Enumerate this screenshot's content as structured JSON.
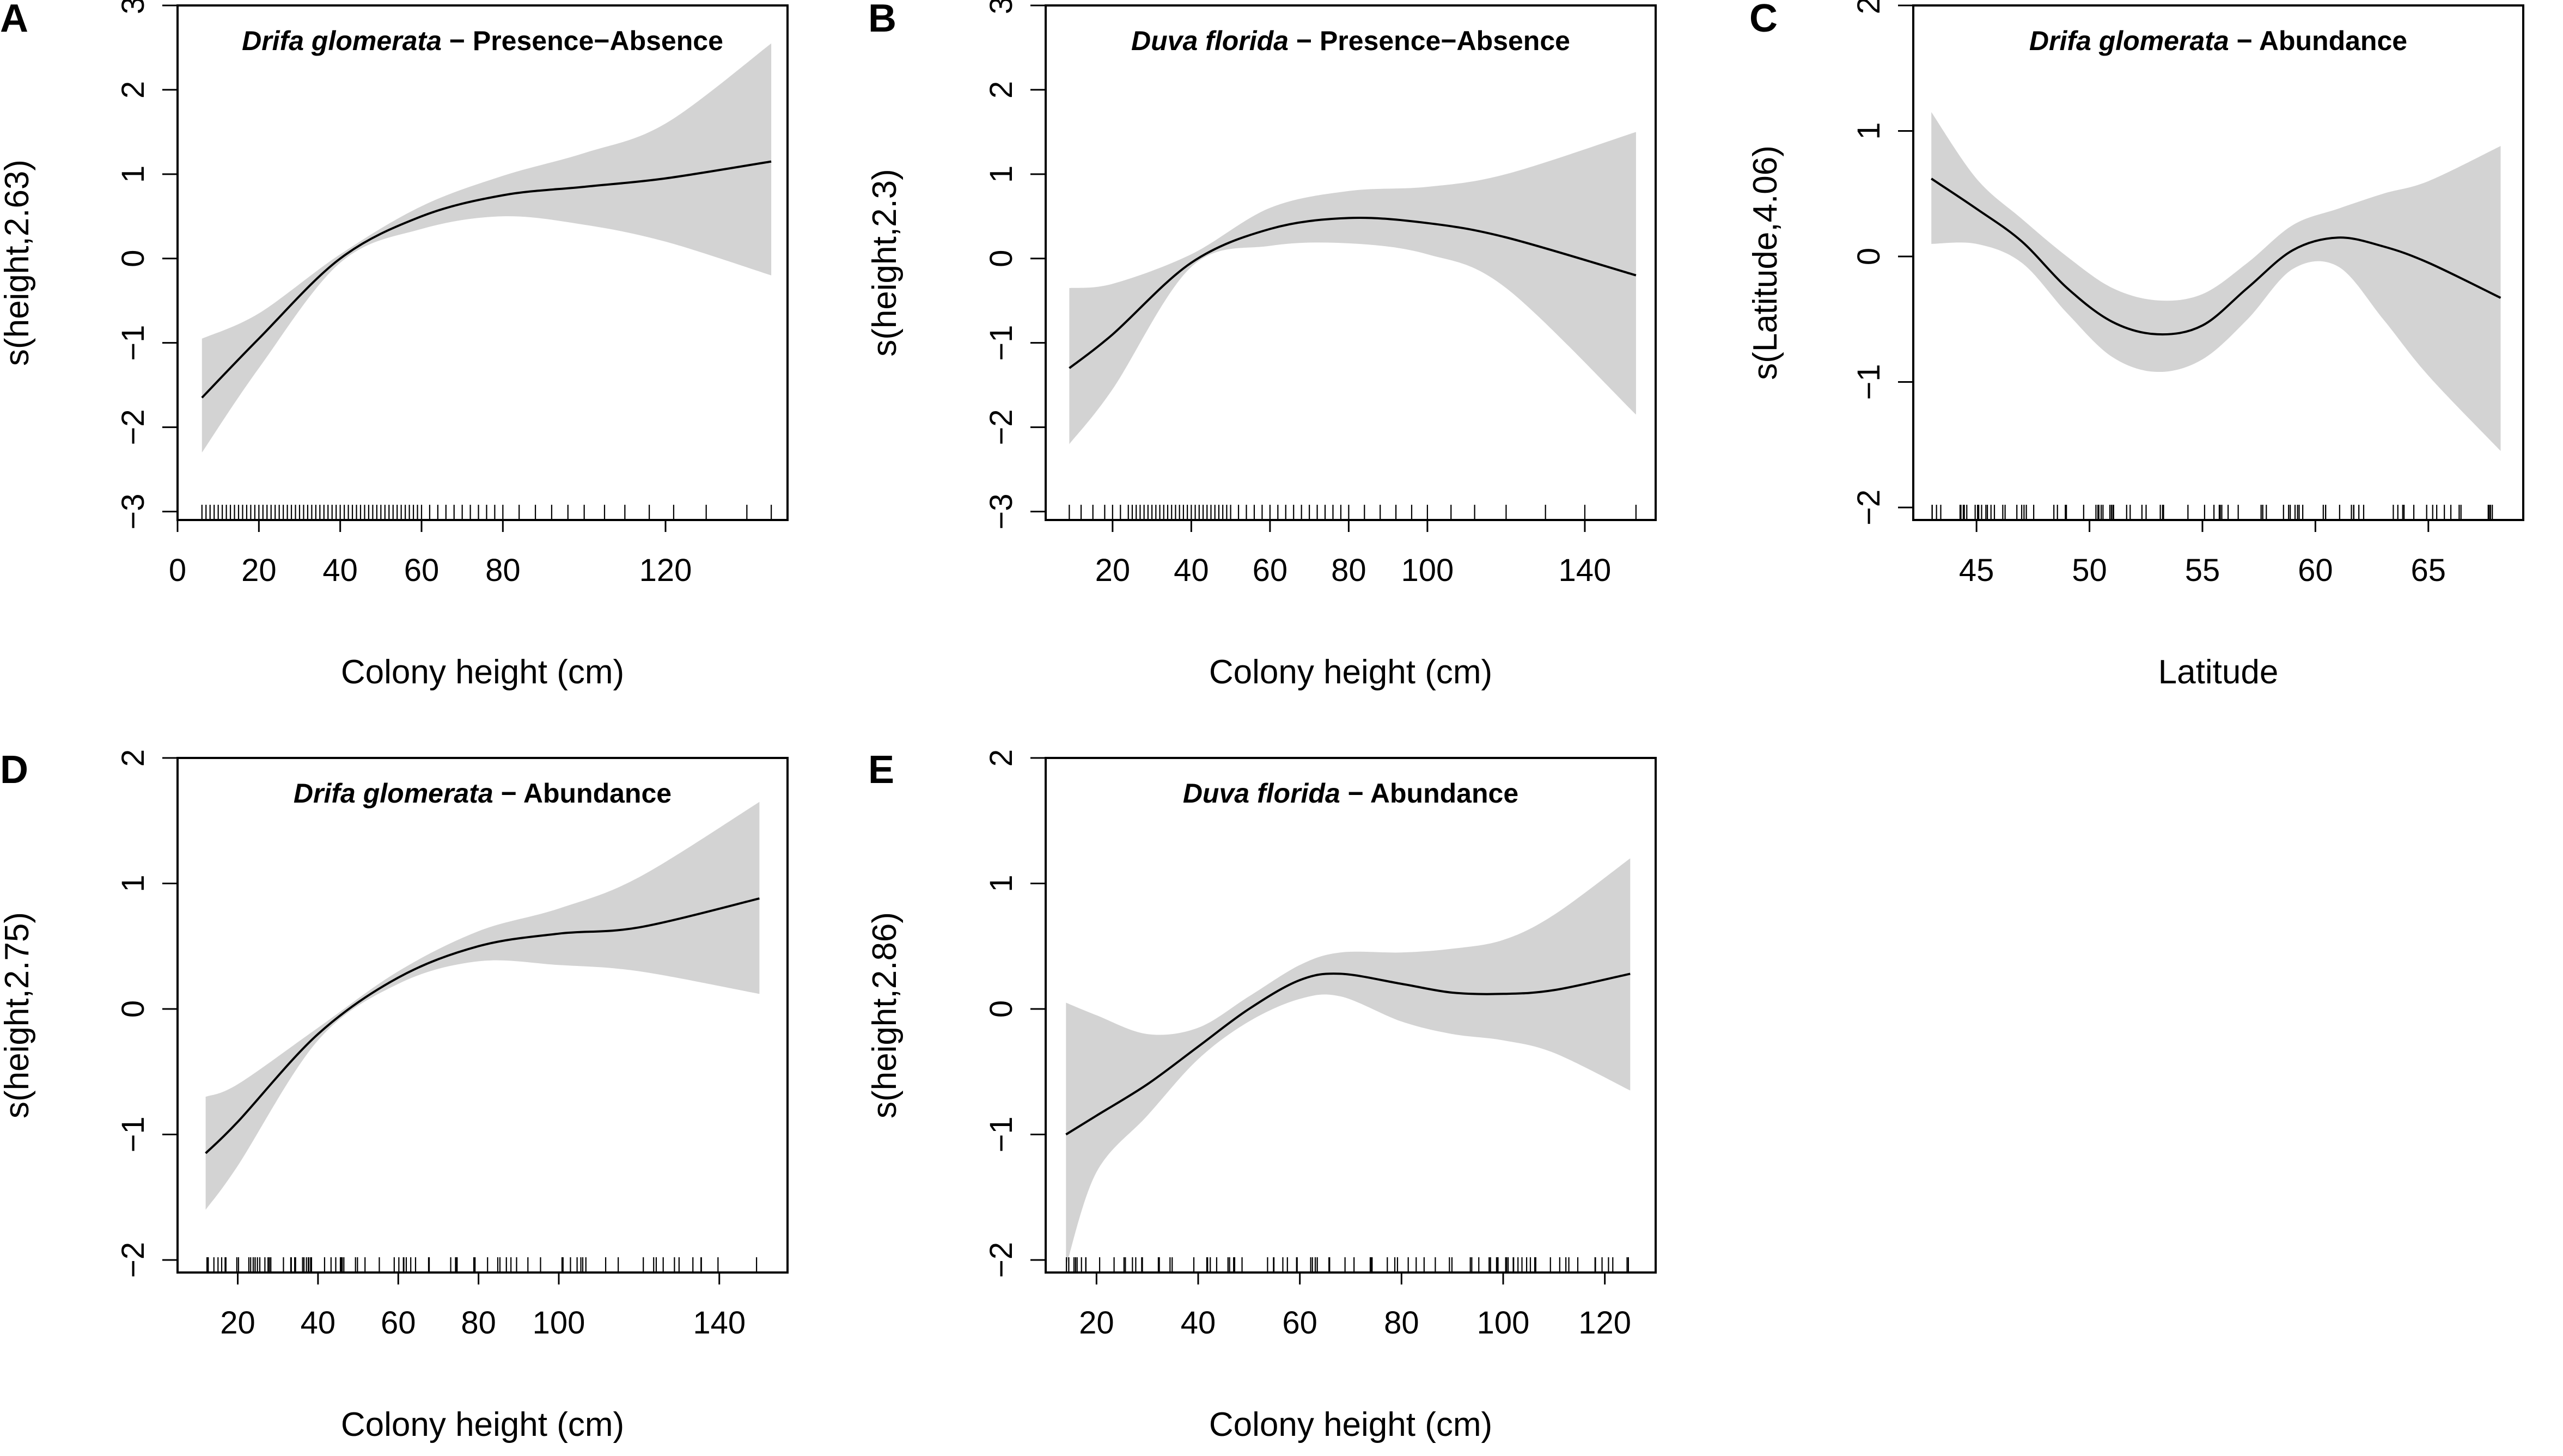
{
  "figure": {
    "background": "#ffffff",
    "band_color": "#d3d3d3",
    "line_color": "#000000"
  },
  "chart_data": [
    {
      "type": "line",
      "letter": "A",
      "title_species": "Drifa glomerata",
      "title_rest": " − Presence−Absence",
      "xlabel": "Colony height (cm)",
      "ylabel": "s(height,2.63)",
      "xlim": [
        0,
        150
      ],
      "ylim": [
        -3.1,
        3
      ],
      "xticks": [
        0,
        20,
        40,
        60,
        80,
        120
      ],
      "xtick_labels": [
        "0",
        "20",
        "40",
        "60",
        "80",
        "120"
      ],
      "yticks": [
        -3,
        -2,
        -1,
        0,
        1,
        2,
        3
      ],
      "ytick_labels": [
        "−3",
        "−2",
        "−1",
        "0",
        "1",
        "2",
        "3"
      ],
      "x": [
        6,
        20,
        40,
        60,
        80,
        100,
        120,
        146
      ],
      "y": [
        -1.65,
        -0.95,
        0.0,
        0.5,
        0.75,
        0.85,
        0.95,
        1.15
      ],
      "lower": [
        -2.3,
        -1.3,
        -0.05,
        0.35,
        0.5,
        0.4,
        0.2,
        -0.2
      ],
      "upper": [
        -0.95,
        -0.65,
        0.05,
        0.62,
        0.98,
        1.25,
        1.6,
        2.55
      ],
      "rug": [
        6,
        7,
        8,
        9,
        10,
        11,
        12,
        13,
        14,
        15,
        16,
        17,
        18,
        19,
        20,
        21,
        22,
        23,
        24,
        25,
        26,
        27,
        28,
        29,
        30,
        31,
        32,
        33,
        34,
        35,
        36,
        37,
        38,
        39,
        40,
        41,
        42,
        43,
        44,
        45,
        46,
        47,
        48,
        49,
        50,
        51,
        52,
        53,
        54,
        55,
        56,
        57,
        58,
        59,
        60,
        62,
        64,
        66,
        68,
        70,
        72,
        74,
        76,
        78,
        80,
        84,
        88,
        92,
        96,
        100,
        105,
        110,
        116,
        122,
        130,
        140,
        146
      ]
    },
    {
      "type": "line",
      "letter": "B",
      "title_species": "Duva florida",
      "title_rest": " − Presence−Absence",
      "xlabel": "Colony height (cm)",
      "ylabel": "s(height,2.3)",
      "xlim": [
        3,
        158
      ],
      "ylim": [
        -3.1,
        3
      ],
      "xticks": [
        20,
        40,
        60,
        80,
        100,
        140
      ],
      "xtick_labels": [
        "20",
        "40",
        "60",
        "80",
        "100",
        "140"
      ],
      "yticks": [
        -3,
        -2,
        -1,
        0,
        1,
        2,
        3
      ],
      "ytick_labels": [
        "−3",
        "−2",
        "−1",
        "0",
        "1",
        "2",
        "3"
      ],
      "x": [
        9,
        20,
        40,
        60,
        80,
        100,
        120,
        153
      ],
      "y": [
        -1.3,
        -0.9,
        -0.05,
        0.35,
        0.48,
        0.42,
        0.25,
        -0.2
      ],
      "lower": [
        -2.2,
        -1.55,
        -0.1,
        0.15,
        0.18,
        0.05,
        -0.35,
        -1.85
      ],
      "upper": [
        -0.35,
        -0.3,
        0.05,
        0.6,
        0.8,
        0.85,
        1.0,
        1.5
      ],
      "rug": [
        9,
        12,
        15,
        18,
        20,
        22,
        24,
        25,
        26,
        27,
        28,
        29,
        30,
        31,
        32,
        33,
        34,
        35,
        36,
        37,
        38,
        39,
        40,
        41,
        42,
        43,
        44,
        45,
        46,
        47,
        48,
        49,
        50,
        52,
        54,
        56,
        58,
        60,
        62,
        64,
        66,
        68,
        70,
        72,
        74,
        76,
        78,
        80,
        84,
        88,
        92,
        96,
        100,
        106,
        112,
        120,
        130,
        140,
        153
      ]
    },
    {
      "type": "line",
      "letter": "C",
      "title_species": "Drifa glomerata",
      "title_rest": " − Abundance",
      "xlabel": "Latitude",
      "ylabel": "s(Latitude,4.06)",
      "xlim": [
        42.2,
        69.2
      ],
      "ylim": [
        -2.1,
        2
      ],
      "xticks": [
        45,
        50,
        55,
        60,
        65
      ],
      "xtick_labels": [
        "45",
        "50",
        "55",
        "60",
        "65"
      ],
      "yticks": [
        -2,
        -1,
        0,
        1,
        2
      ],
      "ytick_labels": [
        "−2",
        "−1",
        "0",
        "1",
        "2"
      ],
      "x": [
        43,
        45,
        47,
        49,
        51,
        53,
        55,
        57,
        59,
        61,
        63,
        65,
        68.2
      ],
      "y": [
        0.62,
        0.38,
        0.12,
        -0.25,
        -0.52,
        -0.62,
        -0.55,
        -0.25,
        0.05,
        0.15,
        0.08,
        -0.05,
        -0.33
      ],
      "lower": [
        0.1,
        0.1,
        -0.05,
        -0.45,
        -0.8,
        -0.92,
        -0.82,
        -0.5,
        -0.1,
        -0.08,
        -0.5,
        -0.95,
        -1.55
      ],
      "upper": [
        1.15,
        0.62,
        0.3,
        0.0,
        -0.25,
        -0.35,
        -0.3,
        -0.05,
        0.25,
        0.38,
        0.5,
        0.6,
        0.88
      ]
    },
    {
      "type": "line",
      "letter": "D",
      "title_species": "Drifa glomerata",
      "title_rest": " − Abundance",
      "xlabel": "Colony height (cm)",
      "ylabel": "s(height,2.75)",
      "xlim": [
        5,
        157
      ],
      "ylim": [
        -2.1,
        2
      ],
      "xticks": [
        20,
        40,
        60,
        80,
        100,
        140
      ],
      "xtick_labels": [
        "20",
        "40",
        "60",
        "80",
        "100",
        "140"
      ],
      "yticks": [
        -2,
        -1,
        0,
        1,
        2
      ],
      "ytick_labels": [
        "−2",
        "−1",
        "0",
        "1",
        "2"
      ],
      "x": [
        12,
        20,
        40,
        60,
        80,
        100,
        120,
        150
      ],
      "y": [
        -1.15,
        -0.9,
        -0.2,
        0.25,
        0.5,
        0.6,
        0.65,
        0.88
      ],
      "lower": [
        -1.6,
        -1.25,
        -0.25,
        0.2,
        0.38,
        0.35,
        0.3,
        0.12
      ],
      "upper": [
        -0.7,
        -0.6,
        -0.15,
        0.3,
        0.62,
        0.8,
        1.05,
        1.65
      ]
    },
    {
      "type": "line",
      "letter": "E",
      "title_species": "Duva florida",
      "title_rest": " − Abundance",
      "xlabel": "Colony height (cm)",
      "ylabel": "s(height,2.86)",
      "xlim": [
        10,
        130
      ],
      "ylim": [
        -2.1,
        2
      ],
      "xticks": [
        20,
        40,
        60,
        80,
        100,
        120
      ],
      "xtick_labels": [
        "20",
        "40",
        "60",
        "80",
        "100",
        "120"
      ],
      "yticks": [
        -2,
        -1,
        0,
        1,
        2
      ],
      "ytick_labels": [
        "−2",
        "−1",
        "0",
        "1",
        "2"
      ],
      "x": [
        14,
        20,
        30,
        40,
        50,
        60,
        68,
        80,
        90,
        100,
        110,
        125
      ],
      "y": [
        -1.0,
        -0.85,
        -0.6,
        -0.3,
        0.0,
        0.23,
        0.28,
        0.2,
        0.13,
        0.12,
        0.15,
        0.28
      ],
      "lower": [
        -2.05,
        -1.3,
        -0.85,
        -0.4,
        -0.1,
        0.08,
        0.1,
        -0.1,
        -0.2,
        -0.25,
        -0.35,
        -0.65
      ],
      "upper": [
        0.05,
        -0.05,
        -0.2,
        -0.15,
        0.1,
        0.35,
        0.45,
        0.45,
        0.48,
        0.55,
        0.75,
        1.2
      ]
    }
  ]
}
